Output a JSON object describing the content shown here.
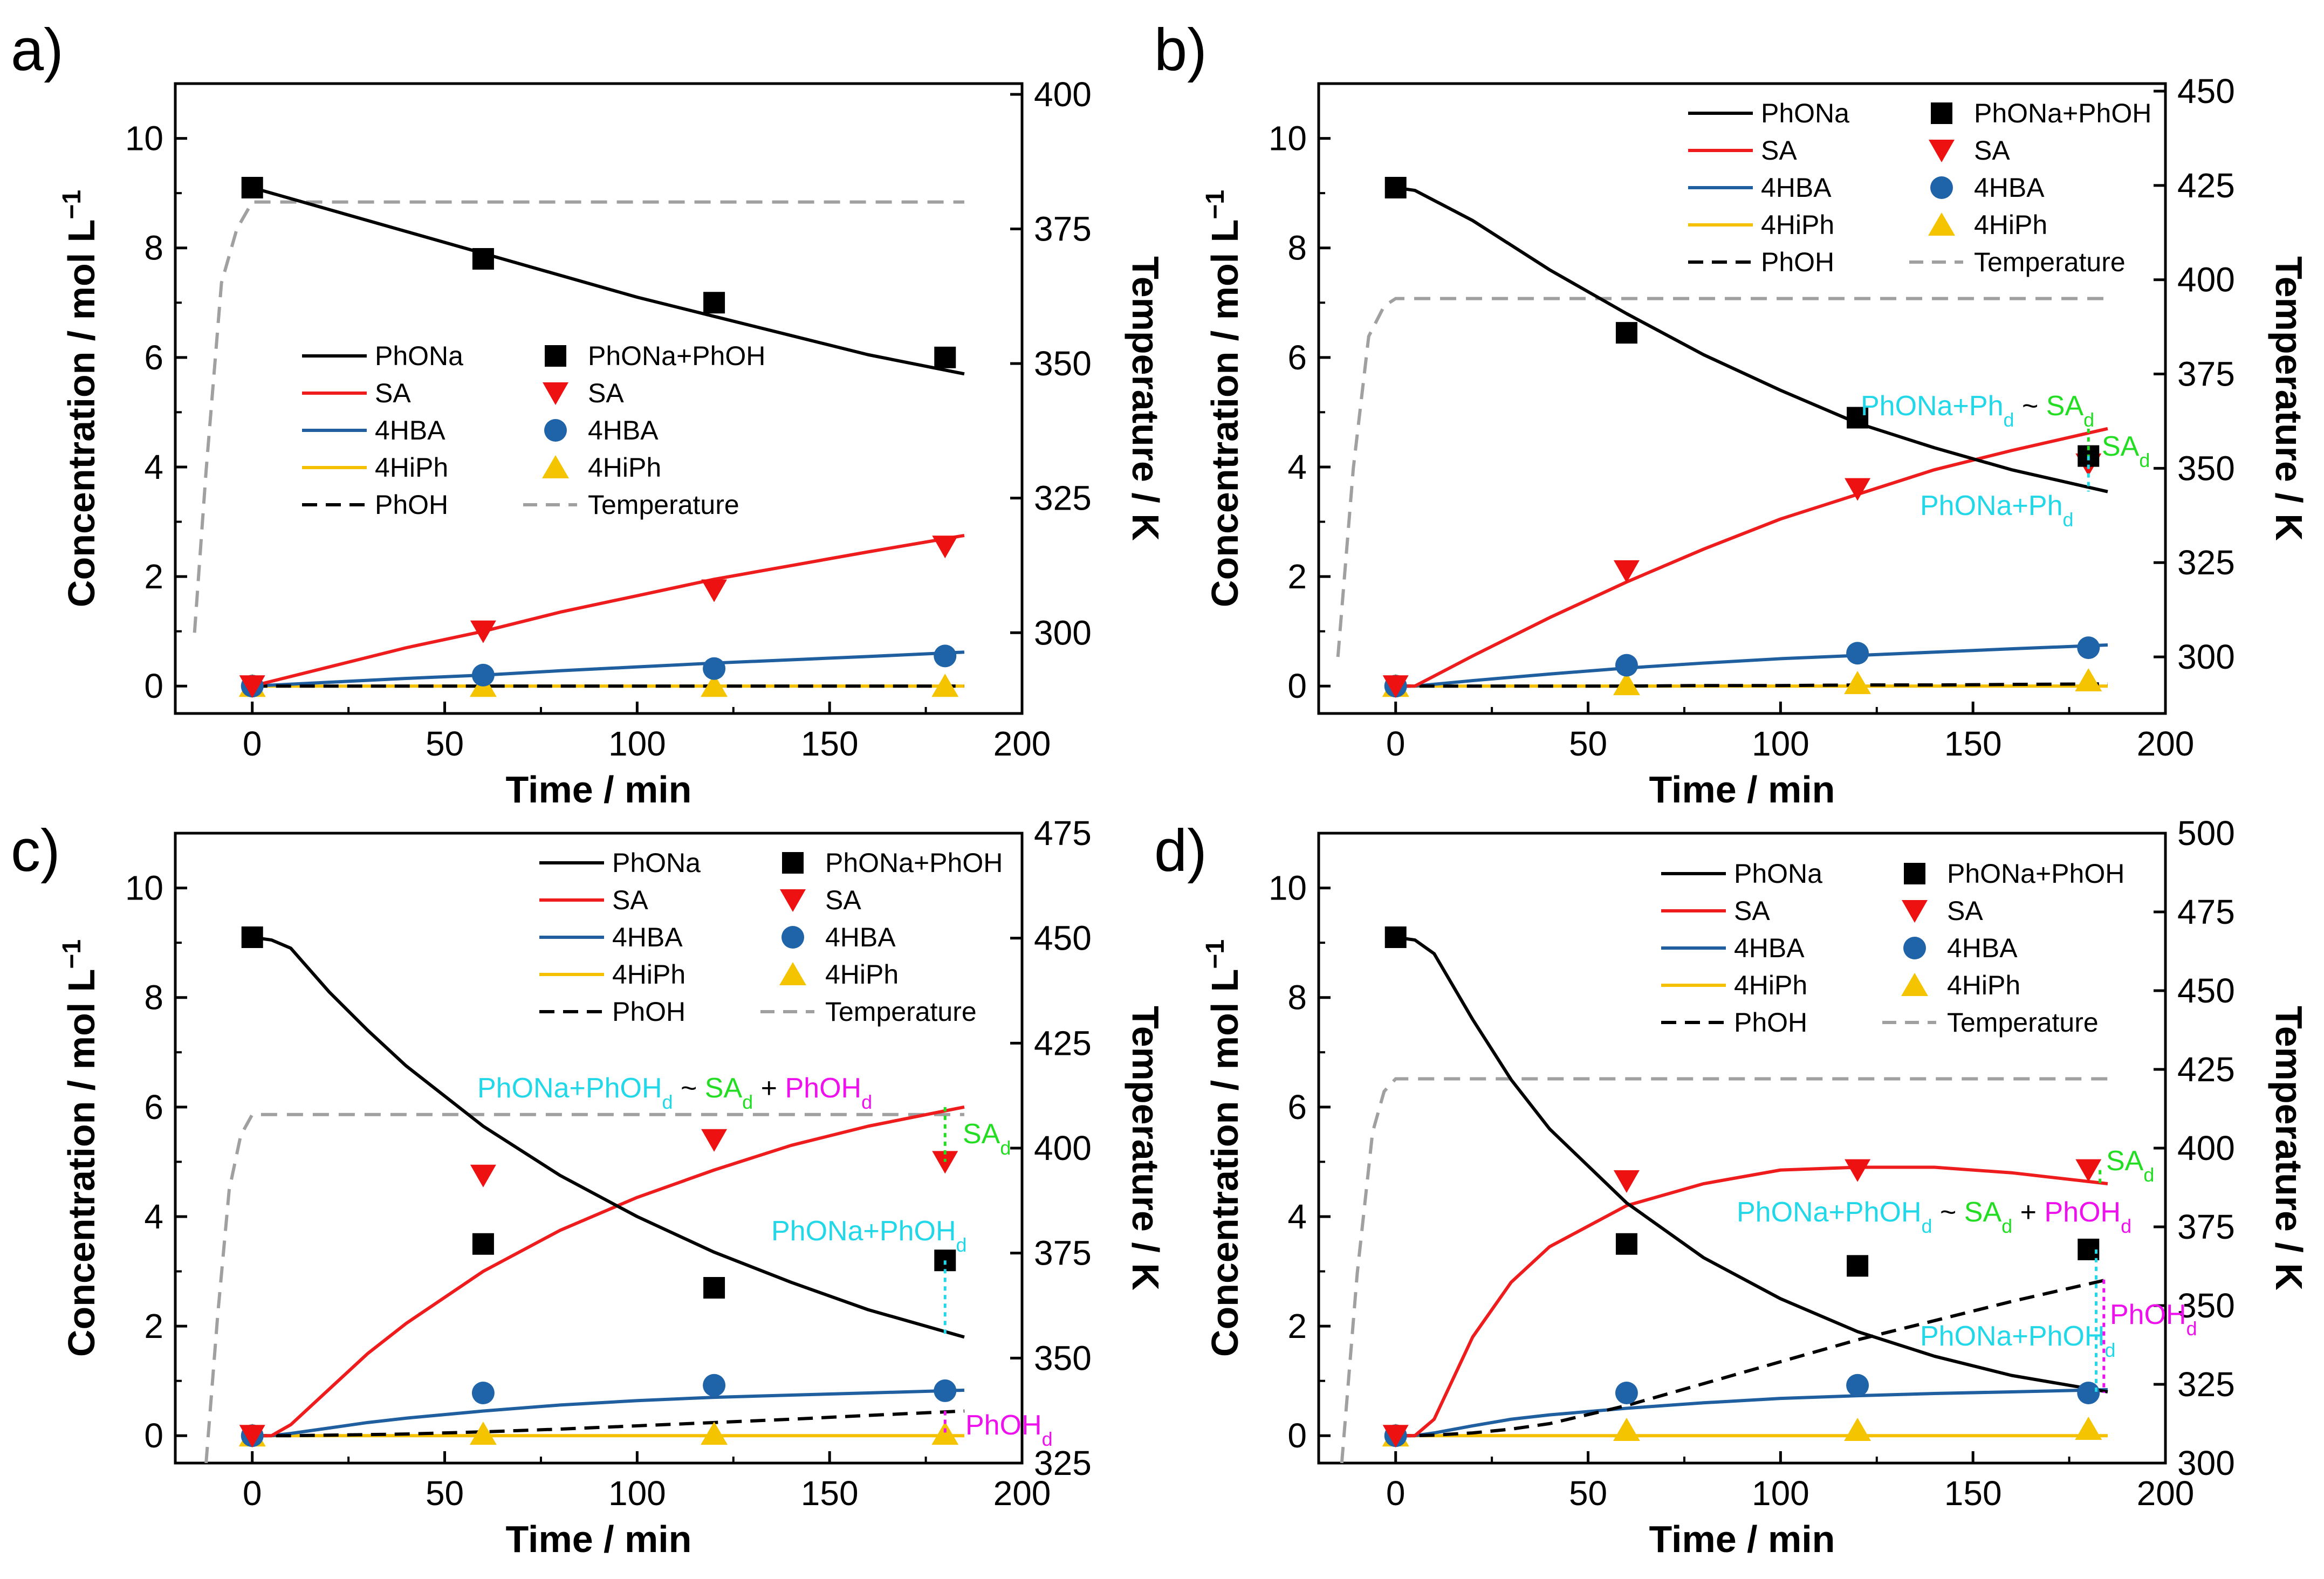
{
  "chart_data": [
    {
      "type": "line",
      "panel_label": "a)",
      "xlabel": "Time / min",
      "ylabel": "Concentration / mol L",
      "ylabel_sup": "−1",
      "y2label": "Temperature / K",
      "xlim": [
        -20,
        200
      ],
      "ylim": [
        -0.5,
        11
      ],
      "y2lim": [
        285,
        402
      ],
      "xticks": [
        0,
        50,
        100,
        150,
        200
      ],
      "yticks": [
        0,
        2,
        4,
        6,
        8,
        10
      ],
      "y2ticks": [
        300,
        325,
        350,
        375,
        400
      ],
      "legend_position": "center",
      "legend": {
        "lines": [
          "PhONa",
          "SA",
          "4HBA",
          "4HiPh",
          "PhOH"
        ],
        "markers": [
          "PhONa+PhOH",
          "SA",
          "4HBA",
          "4HiPh"
        ],
        "temperature": "Temperature"
      },
      "model_x": [
        0,
        20,
        40,
        60,
        80,
        100,
        120,
        140,
        160,
        185
      ],
      "model": {
        "PhONa": [
          9.1,
          8.7,
          8.3,
          7.9,
          7.5,
          7.1,
          6.75,
          6.4,
          6.05,
          5.7
        ],
        "SA": [
          0,
          0.35,
          0.7,
          1.0,
          1.35,
          1.65,
          1.95,
          2.2,
          2.45,
          2.75
        ],
        "4HBA": [
          0,
          0.07,
          0.14,
          0.2,
          0.28,
          0.35,
          0.42,
          0.48,
          0.54,
          0.62
        ],
        "4HiPh": [
          0,
          0,
          0,
          0,
          0,
          0,
          0,
          0,
          0,
          0
        ],
        "PhOH": [
          0,
          0,
          0,
          0,
          0,
          0,
          0,
          0,
          0,
          0
        ]
      },
      "temperature_x": [
        -15,
        -12,
        -8,
        -4,
        0,
        185
      ],
      "temperature": [
        300,
        330,
        365,
        375,
        380,
        380
      ],
      "exp_x": [
        0,
        60,
        120,
        180
      ],
      "exp": {
        "PhONa+PhOH": [
          9.1,
          7.8,
          7.0,
          6.0
        ],
        "SA": [
          0,
          1.0,
          1.75,
          2.55
        ],
        "4HBA": [
          0,
          0.2,
          0.32,
          0.55
        ],
        "4HiPh": [
          0,
          0,
          0,
          0
        ]
      },
      "annotations": []
    },
    {
      "type": "line",
      "panel_label": "b)",
      "xlabel": "Time / min",
      "ylabel": "Concentration / mol L",
      "ylabel_sup": "−1",
      "y2label": "Temperature / K",
      "xlim": [
        -20,
        200
      ],
      "ylim": [
        -0.5,
        11
      ],
      "y2lim": [
        285,
        452
      ],
      "xticks": [
        0,
        50,
        100,
        150,
        200
      ],
      "yticks": [
        0,
        2,
        4,
        6,
        8,
        10
      ],
      "y2ticks": [
        300,
        325,
        350,
        375,
        400,
        425,
        450
      ],
      "legend_position": "top-right",
      "legend": {
        "lines": [
          "PhONa",
          "SA",
          "4HBA",
          "4HiPh",
          "PhOH"
        ],
        "markers": [
          "PhONa+PhOH",
          "SA",
          "4HBA",
          "4HiPh"
        ],
        "temperature": "Temperature"
      },
      "model_x": [
        0,
        5,
        20,
        40,
        60,
        80,
        100,
        120,
        140,
        160,
        185
      ],
      "model": {
        "PhONa": [
          9.1,
          9.05,
          8.5,
          7.6,
          6.8,
          6.05,
          5.4,
          4.8,
          4.35,
          3.95,
          3.55
        ],
        "SA": [
          0,
          0,
          0.55,
          1.25,
          1.9,
          2.5,
          3.05,
          3.5,
          3.95,
          4.3,
          4.7
        ],
        "4HBA": [
          0,
          0,
          0.1,
          0.22,
          0.33,
          0.42,
          0.5,
          0.56,
          0.62,
          0.68,
          0.75
        ],
        "4HiPh": [
          0,
          0,
          0,
          0,
          0,
          0,
          0,
          0,
          0,
          0,
          0
        ],
        "PhOH": [
          0,
          0,
          0,
          0,
          0,
          0.01,
          0.01,
          0.02,
          0.02,
          0.03,
          0.04
        ]
      },
      "temperature_x": [
        -15,
        -11,
        -7,
        -3,
        0,
        185
      ],
      "temperature": [
        300,
        350,
        385,
        393,
        395,
        395
      ],
      "exp_x": [
        0,
        60,
        120,
        180
      ],
      "exp": {
        "PhONa+PhOH": [
          9.1,
          6.45,
          4.9,
          4.2
        ],
        "SA": [
          0,
          2.1,
          3.6,
          4.05
        ],
        "4HBA": [
          0,
          0.38,
          0.6,
          0.7
        ],
        "4HiPh": [
          0,
          0.03,
          0.05,
          0.1
        ]
      },
      "annotations": [
        {
          "text": "PhONa+Ph",
          "sub": "d",
          "color": "#22d8e8",
          "extra": [
            {
              "text": " ~ ",
              "color": "#000000"
            },
            {
              "text": "SA",
              "sub": "d",
              "color": "#22dd22"
            }
          ]
        },
        {
          "text": "SA",
          "sub": "d",
          "color": "#22dd22"
        },
        {
          "text": "PhONa+Ph",
          "sub": "d",
          "color": "#22d8e8"
        }
      ]
    },
    {
      "type": "line",
      "panel_label": "c)",
      "xlabel": "Time / min",
      "ylabel": "Concentration / mol L",
      "ylabel_sup": "−1",
      "y2label": "Temperature / K",
      "xlim": [
        -20,
        200
      ],
      "ylim": [
        -0.5,
        11
      ],
      "y2lim": [
        325,
        475
      ],
      "xticks": [
        0,
        50,
        100,
        150,
        200
      ],
      "yticks": [
        0,
        2,
        4,
        6,
        8,
        10
      ],
      "y2ticks": [
        325,
        350,
        375,
        400,
        425,
        450,
        475
      ],
      "legend_position": "top-right",
      "legend": {
        "lines": [
          "PhONa",
          "SA",
          "4HBA",
          "4HiPh",
          "PhOH"
        ],
        "markers": [
          "PhONa+PhOH",
          "SA",
          "4HBA",
          "4HiPh"
        ],
        "temperature": "Temperature"
      },
      "model_x": [
        0,
        5,
        10,
        20,
        30,
        40,
        60,
        80,
        100,
        120,
        140,
        160,
        185
      ],
      "model": {
        "PhONa": [
          9.1,
          9.05,
          8.9,
          8.1,
          7.4,
          6.75,
          5.65,
          4.75,
          4.0,
          3.35,
          2.8,
          2.3,
          1.8
        ],
        "SA": [
          0,
          0,
          0.2,
          0.85,
          1.5,
          2.05,
          3.0,
          3.75,
          4.35,
          4.85,
          5.3,
          5.65,
          6.0
        ],
        "4HBA": [
          0,
          0,
          0.04,
          0.14,
          0.24,
          0.32,
          0.45,
          0.56,
          0.64,
          0.7,
          0.74,
          0.78,
          0.83
        ],
        "4HiPh": [
          0,
          0,
          0,
          0,
          0,
          0,
          0,
          0,
          0,
          0,
          0,
          0,
          0
        ],
        "PhOH": [
          0,
          0,
          0,
          0.01,
          0.02,
          0.03,
          0.07,
          0.12,
          0.18,
          0.24,
          0.3,
          0.37,
          0.45
        ]
      },
      "temperature_x": [
        -12,
        -9,
        -6,
        -3,
        0,
        185
      ],
      "temperature": [
        325,
        360,
        390,
        403,
        408,
        408
      ],
      "exp_x": [
        0,
        60,
        120,
        180
      ],
      "exp": {
        "PhONa+PhOH": [
          9.1,
          3.5,
          2.7,
          3.2
        ],
        "SA": [
          0,
          4.75,
          5.4,
          5.0
        ],
        "4HBA": [
          0,
          0.78,
          0.92,
          0.82
        ],
        "4HiPh": [
          0,
          0.03,
          0.03,
          0.03
        ]
      },
      "annotations": [
        {
          "text": "PhONa+PhOH",
          "sub": "d",
          "color": "#22d8e8",
          "extra": [
            {
              "text": " ~ ",
              "color": "#000000"
            },
            {
              "text": "SA",
              "sub": "d",
              "color": "#22dd22"
            },
            {
              "text": " + ",
              "color": "#000000"
            },
            {
              "text": "PhOH",
              "sub": "d",
              "color": "#ee11ee"
            }
          ]
        },
        {
          "text": "SA",
          "sub": "d",
          "color": "#22dd22"
        },
        {
          "text": "PhONa+PhOH",
          "sub": "d",
          "color": "#22d8e8"
        },
        {
          "text": "PhOH",
          "sub": "d",
          "color": "#ee11ee"
        }
      ]
    },
    {
      "type": "line",
      "panel_label": "d)",
      "xlabel": "Time / min",
      "ylabel": "Concentration / mol L",
      "ylabel_sup": "−1",
      "y2label": "Temperature / K",
      "xlim": [
        -20,
        200
      ],
      "ylim": [
        -0.5,
        11
      ],
      "y2lim": [
        300,
        500
      ],
      "xticks": [
        0,
        50,
        100,
        150,
        200
      ],
      "yticks": [
        0,
        2,
        4,
        6,
        8,
        10
      ],
      "y2ticks": [
        300,
        325,
        350,
        375,
        400,
        425,
        450,
        475,
        500
      ],
      "legend_position": "top-right",
      "legend": {
        "lines": [
          "PhONa",
          "SA",
          "4HBA",
          "4HiPh",
          "PhOH"
        ],
        "markers": [
          "PhONa+PhOH",
          "SA",
          "4HBA",
          "4HiPh"
        ],
        "temperature": "Temperature"
      },
      "model_x": [
        0,
        5,
        10,
        20,
        30,
        40,
        60,
        80,
        100,
        120,
        140,
        160,
        185
      ],
      "model": {
        "PhONa": [
          9.1,
          9.05,
          8.8,
          7.6,
          6.5,
          5.6,
          4.25,
          3.25,
          2.5,
          1.9,
          1.45,
          1.1,
          0.8
        ],
        "SA": [
          0,
          0,
          0.3,
          1.8,
          2.8,
          3.45,
          4.2,
          4.6,
          4.85,
          4.9,
          4.9,
          4.8,
          4.6
        ],
        "4HBA": [
          0,
          0,
          0.05,
          0.18,
          0.3,
          0.38,
          0.5,
          0.6,
          0.68,
          0.73,
          0.77,
          0.8,
          0.84
        ],
        "4HiPh": [
          0,
          0,
          0,
          0,
          0,
          0,
          0,
          0,
          0,
          0,
          0,
          0,
          0
        ],
        "PhOH": [
          0,
          0,
          0.01,
          0.05,
          0.12,
          0.22,
          0.55,
          0.95,
          1.35,
          1.75,
          2.1,
          2.45,
          2.85
        ]
      },
      "temperature_x": [
        -14,
        -10,
        -6,
        -3,
        0,
        185
      ],
      "temperature": [
        300,
        360,
        405,
        418,
        422,
        422
      ],
      "exp_x": [
        0,
        60,
        120,
        180
      ],
      "exp": {
        "PhONa+PhOH": [
          9.1,
          3.5,
          3.1,
          3.4
        ],
        "SA": [
          0,
          4.65,
          4.85,
          4.85
        ],
        "4HBA": [
          0,
          0.78,
          0.92,
          0.78
        ],
        "4HiPh": [
          0,
          0.1,
          0.1,
          0.12
        ]
      },
      "annotations": [
        {
          "text": "SA",
          "sub": "d",
          "color": "#22dd22"
        },
        {
          "text": "PhONa+PhOH",
          "sub": "d",
          "color": "#22d8e8",
          "extra": [
            {
              "text": " ~ ",
              "color": "#000000"
            },
            {
              "text": "SA",
              "sub": "d",
              "color": "#22dd22"
            },
            {
              "text": " + ",
              "color": "#000000"
            },
            {
              "text": "PhOH",
              "sub": "d",
              "color": "#ee11ee"
            }
          ]
        },
        {
          "text": "PhONa+PhOH",
          "sub": "d",
          "color": "#22d8e8"
        },
        {
          "text": "PhOH",
          "sub": "d",
          "color": "#ee11ee"
        }
      ]
    }
  ],
  "colors": {
    "PhONa": "#000000",
    "SA": "#ee1c1c",
    "4HBA": "#1f5fa0",
    "4HiPh": "#f5c000",
    "PhOH": "#000000",
    "Temperature": "#a0a0a0",
    "exp_PhONa+PhOH": "#000000",
    "exp_SA": "#ee1111",
    "exp_4HBA": "#1f64a8",
    "exp_4HiPh": "#f5c400"
  }
}
